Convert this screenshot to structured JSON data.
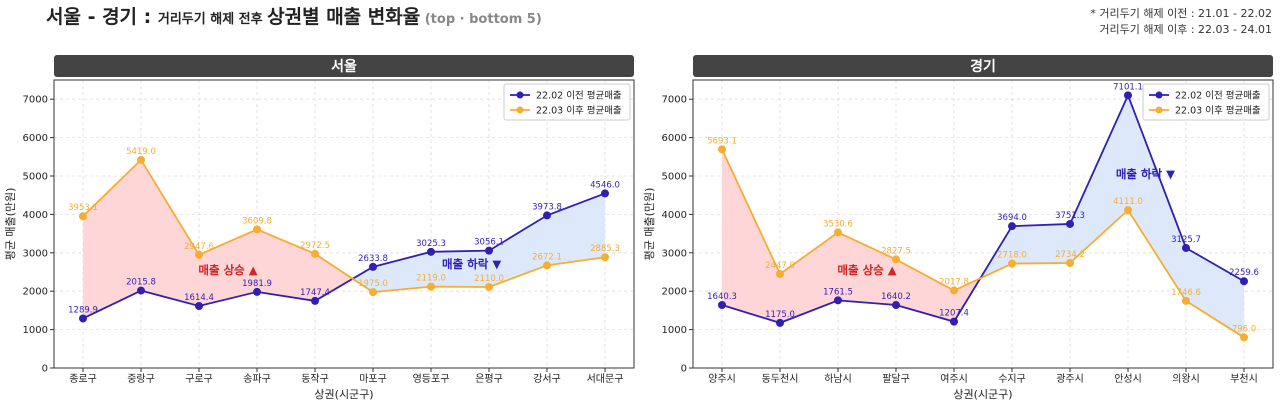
{
  "title": {
    "part1": "서울 - 경기 : ",
    "part2": "거리두기 해제 전후 ",
    "part3": "상권별 매출 변화율",
    "part4": " (top · bottom 5)"
  },
  "note": {
    "line1": "* 거리두기 해제 이전 : 21.01 - 22.02",
    "line2": "거리두기 해제 이후 : 22.03 - 24.01"
  },
  "colors": {
    "before": "#2f1fb3",
    "after": "#f5ad32",
    "fill_up": "#ffd6d8",
    "fill_down": "#dde9fb",
    "up_text": "#d42323",
    "down_text": "#2f1fb3",
    "header_bg": "#444444"
  },
  "chart_data": [
    {
      "type": "line",
      "title": "서울",
      "xlabel": "상권(시군구)",
      "ylabel": "평균 매출(만원)",
      "ylim": [
        0,
        7500
      ],
      "yticks": [
        0,
        1000,
        2000,
        3000,
        4000,
        5000,
        6000,
        7000
      ],
      "grid": true,
      "legend": "top-right",
      "categories": [
        "종로구",
        "중랑구",
        "구로구",
        "송파구",
        "동작구",
        "마포구",
        "영등포구",
        "은평구",
        "강서구",
        "서대문구"
      ],
      "series": [
        {
          "name": "22.02 이전 평균매출",
          "values": [
            1289.9,
            2015.8,
            1614.4,
            1981.9,
            1747.4,
            2633.8,
            3025.3,
            3056.1,
            3973.8,
            4546.0
          ]
        },
        {
          "name": "22.03 이후 평균매출",
          "values": [
            3953.1,
            5419.0,
            2947.6,
            3609.8,
            2972.5,
            1975.0,
            2119.0,
            2110.0,
            2672.1,
            2885.3
          ]
        }
      ],
      "annotations": [
        {
          "text": "매출 상승 ▲",
          "kind": "up",
          "x": 2.5,
          "y": 2450
        },
        {
          "text": "매출 하락 ▼",
          "kind": "down",
          "x": 6.7,
          "y": 2600
        }
      ]
    },
    {
      "type": "line",
      "title": "경기",
      "xlabel": "상권(시군구)",
      "ylabel": "평균 매출(만원)",
      "ylim": [
        0,
        7500
      ],
      "yticks": [
        0,
        1000,
        2000,
        3000,
        4000,
        5000,
        6000,
        7000
      ],
      "grid": true,
      "legend": "top-right",
      "categories": [
        "양주시",
        "동두천시",
        "하남시",
        "팔달구",
        "여주시",
        "수지구",
        "광주시",
        "안성시",
        "의왕시",
        "부천시"
      ],
      "series": [
        {
          "name": "22.02 이전 평균매출",
          "values": [
            1640.3,
            1175.0,
            1761.5,
            1640.2,
            1207.4,
            3694.0,
            3751.3,
            7101.1,
            3125.7,
            2259.6
          ]
        },
        {
          "name": "22.03 이후 평균매출",
          "values": [
            5693.1,
            2447.0,
            3530.6,
            2827.5,
            2017.8,
            2718.0,
            2734.2,
            4111.0,
            1746.6,
            796.0
          ]
        }
      ],
      "annotations": [
        {
          "text": "매출 상승 ▲",
          "kind": "up",
          "x": 2.5,
          "y": 2450
        },
        {
          "text": "매출 하락 ▼",
          "kind": "down",
          "x": 7.3,
          "y": 4950
        }
      ]
    }
  ]
}
